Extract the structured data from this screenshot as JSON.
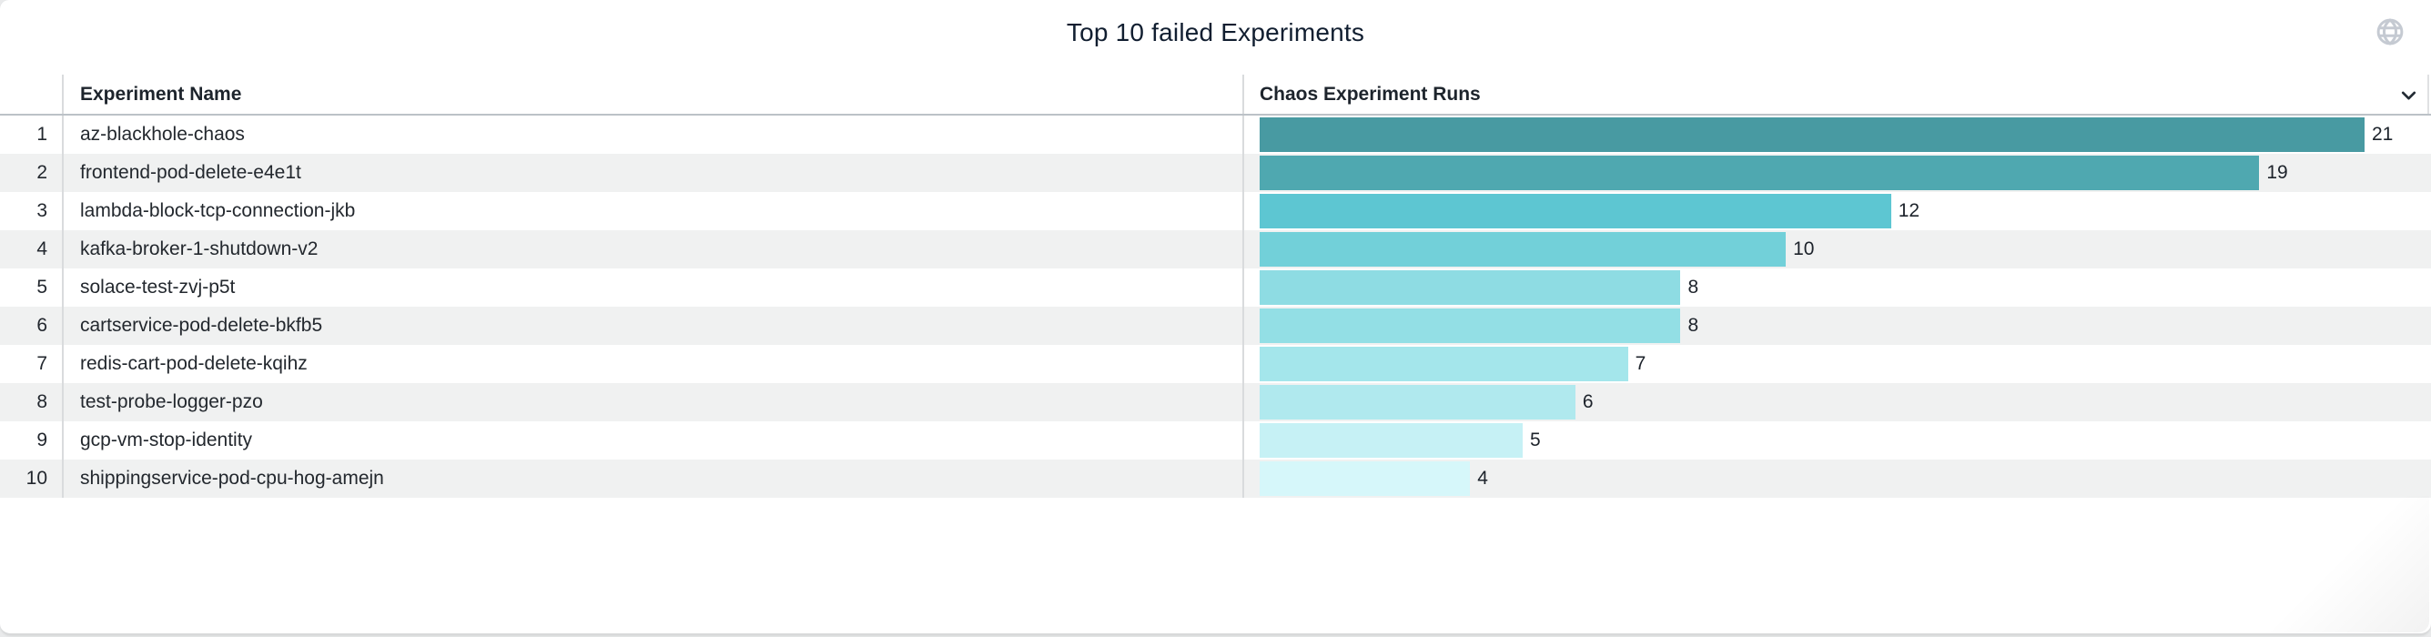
{
  "panel": {
    "title": "Top 10 failed Experiments"
  },
  "icons": {
    "globe": "globe-icon",
    "chevron": "chevron-down-icon"
  },
  "colors": {
    "title_text": "#111e30",
    "header_text": "#1d242c",
    "cell_text": "#23282e",
    "row_stripe": "#f0f1f1",
    "header_border": "#bcc2c7",
    "column_divider": "#d9dbdd",
    "globe_icon": "#c5cad2"
  },
  "table": {
    "columns": [
      {
        "label": "Experiment Name"
      },
      {
        "label": "Chaos Experiment Runs"
      }
    ],
    "rows": [
      {
        "rank": "1",
        "name": "az-blackhole-chaos",
        "runs": 21
      },
      {
        "rank": "2",
        "name": "frontend-pod-delete-e4e1t",
        "runs": 19
      },
      {
        "rank": "3",
        "name": "lambda-block-tcp-connection-jkb",
        "runs": 12
      },
      {
        "rank": "4",
        "name": "kafka-broker-1-shutdown-v2",
        "runs": 10
      },
      {
        "rank": "5",
        "name": "solace-test-zvj-p5t",
        "runs": 8
      },
      {
        "rank": "6",
        "name": "cartservice-pod-delete-bkfb5",
        "runs": 8
      },
      {
        "rank": "7",
        "name": "redis-cart-pod-delete-kqihz",
        "runs": 7
      },
      {
        "rank": "8",
        "name": "test-probe-logger-pzo",
        "runs": 6
      },
      {
        "rank": "9",
        "name": "gcp-vm-stop-identity",
        "runs": 5
      },
      {
        "rank": "10",
        "name": "shippingservice-pod-cpu-hog-amejn",
        "runs": 4
      }
    ]
  },
  "chart_data": {
    "type": "bar",
    "orientation": "horizontal",
    "title": "Top 10 failed Experiments",
    "categories": [
      "az-blackhole-chaos",
      "frontend-pod-delete-e4e1t",
      "lambda-block-tcp-connection-jkb",
      "kafka-broker-1-shutdown-v2",
      "solace-test-zvj-p5t",
      "cartservice-pod-delete-bkfb5",
      "redis-cart-pod-delete-kqihz",
      "test-probe-logger-pzo",
      "gcp-vm-stop-identity",
      "shippingservice-pod-cpu-hog-amejn"
    ],
    "values": [
      21,
      19,
      12,
      10,
      8,
      8,
      7,
      6,
      5,
      4
    ],
    "xlabel": "Chaos Experiment Runs",
    "ylabel": "Experiment Name",
    "xlim": [
      0,
      22
    ],
    "grid": false,
    "legend": false,
    "data_labels": true,
    "bar_colors": [
      "#489aa2",
      "#4fa8b0",
      "#5dc6d2",
      "#72d0d9",
      "#8edce3",
      "#93dfe5",
      "#a4e6eb",
      "#b0e9ee",
      "#c6f1f5",
      "#d6f7fa"
    ]
  }
}
